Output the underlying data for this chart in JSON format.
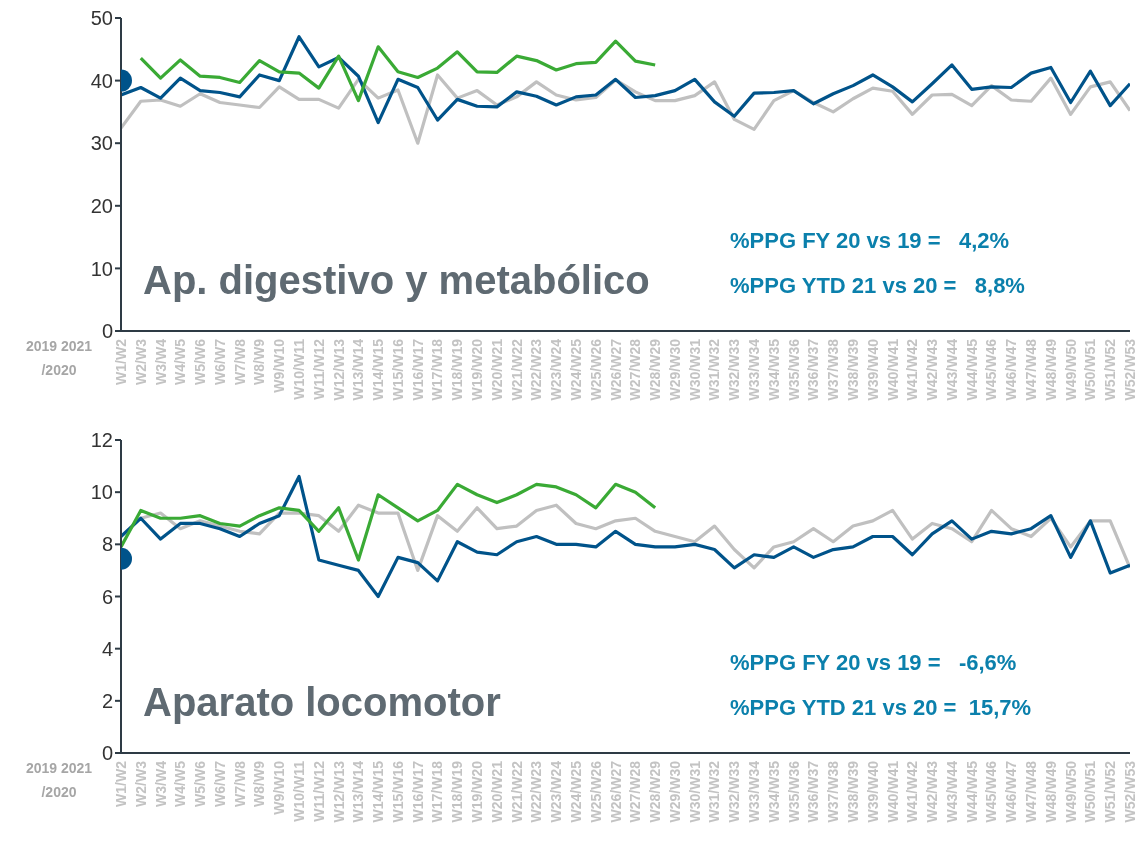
{
  "chart_data": [
    {
      "type": "line",
      "title": "Ap. digestivo y metabólico",
      "categories": [
        "W1/W2",
        "W2/W3",
        "W3/W4",
        "W4/W5",
        "W5/W6",
        "W6/W7",
        "W7/W8",
        "W8/W9",
        "W9/W10",
        "W10/W11",
        "W11/W12",
        "W12/W13",
        "W13/W14",
        "W14/W15",
        "W15/W16",
        "W16/W17",
        "W17/W18",
        "W18/W19",
        "W19/W20",
        "W20/W21",
        "W21/W22",
        "W22/W23",
        "W23/W24",
        "W24/W25",
        "W25/W26",
        "W26/W27",
        "W27/W28",
        "W28/W29",
        "W29/W30",
        "W30/W31",
        "W31/W32",
        "W32/W33",
        "W33/W34",
        "W34/W35",
        "W35/W36",
        "W36/W37",
        "W37/W38",
        "W38/W39",
        "W39/W40",
        "W40/W41",
        "W41/W42",
        "W42/W43",
        "W43/W44",
        "W44/W45",
        "W45/W46",
        "W46/W47",
        "W47/W48",
        "W48/W49",
        "W49/W50",
        "W50/W51",
        "W51/W52",
        "W52/W53"
      ],
      "series": [
        {
          "color": "#c0c0c0",
          "values": [
            32.4,
            36.7,
            36.9,
            35.9,
            37.9,
            36.5,
            36.1,
            35.7,
            39.0,
            37.0,
            37.0,
            35.6,
            40.2,
            37.2,
            38.5,
            30.0,
            40.9,
            37.2,
            38.4,
            36.1,
            37.4,
            39.8,
            37.7,
            36.9,
            37.3,
            40.1,
            38.2,
            36.8,
            36.8,
            37.6,
            39.8,
            33.8,
            32.2,
            36.8,
            38.4,
            36.5,
            35.0,
            37.1,
            38.8,
            38.3,
            34.6,
            37.7,
            37.8,
            36.0,
            39.2,
            36.9,
            36.7,
            40.4,
            34.6,
            39.0,
            39.8,
            35.2
          ]
        },
        {
          "color": "#00538a",
          "values": [
            37.7,
            38.9,
            37.2,
            40.4,
            38.4,
            38.1,
            37.4,
            40.9,
            40.0,
            47.0,
            42.2,
            43.7,
            40.7,
            33.3,
            40.2,
            38.9,
            33.7,
            37.0,
            35.9,
            35.8,
            38.2,
            37.5,
            36.1,
            37.4,
            37.7,
            40.2,
            37.3,
            37.6,
            38.4,
            40.2,
            36.6,
            34.3,
            38.0,
            38.1,
            38.4,
            36.3,
            37.9,
            39.2,
            40.9,
            39.0,
            36.6,
            39.5,
            42.5,
            38.6,
            39.0,
            38.9,
            41.2,
            42.1,
            36.5,
            41.5,
            36.0,
            39.5
          ]
        },
        {
          "color": "#3aaa35",
          "values": [
            null,
            43.6,
            40.4,
            43.3,
            40.7,
            40.5,
            39.7,
            43.2,
            41.4,
            41.2,
            38.8,
            43.9,
            36.8,
            45.4,
            41.4,
            40.5,
            42.0,
            44.6,
            41.4,
            41.3,
            43.9,
            43.2,
            41.7,
            42.7,
            42.9,
            46.3,
            43.1,
            42.5,
            null,
            null,
            null,
            null,
            null,
            null,
            null,
            null,
            null,
            null,
            null,
            null,
            null,
            null,
            null,
            null,
            null,
            null,
            null,
            null,
            null,
            null,
            null,
            null
          ]
        },
        {
          "type": "scatter",
          "color": "#00538a",
          "marker": "circle",
          "x": [
            "W1/W2"
          ],
          "values": [
            40
          ]
        }
      ],
      "ylim": [
        0,
        50
      ],
      "yticks": [
        0,
        10,
        20,
        30,
        40,
        50
      ],
      "grid": false,
      "marker": "none",
      "line_style": "solid",
      "annotations": [
        "%PPG FY 20 vs 19 =   4,2%",
        "%PPG YTD 21 vs 20 =   8,8%",
        "2019 2021",
        "/2020"
      ]
    },
    {
      "type": "line",
      "title": "Aparato locomotor",
      "categories": [
        "W1/W2",
        "W2/W3",
        "W3/W4",
        "W4/W5",
        "W5/W6",
        "W6/W7",
        "W7/W8",
        "W8/W9",
        "W9/W10",
        "W10/W11",
        "W11/W12",
        "W12/W13",
        "W13/W14",
        "W14/W15",
        "W15/W16",
        "W16/W17",
        "W17/W18",
        "W18/W19",
        "W19/W20",
        "W20/W21",
        "W21/W22",
        "W22/W23",
        "W23/W24",
        "W24/W25",
        "W25/W26",
        "W26/W27",
        "W27/W28",
        "W28/W29",
        "W29/W30",
        "W30/W31",
        "W31/W32",
        "W32/W33",
        "W33/W34",
        "W34/W35",
        "W35/W36",
        "W36/W37",
        "W37/W38",
        "W38/W39",
        "W39/W40",
        "W40/W41",
        "W41/W42",
        "W42/W43",
        "W43/W44",
        "W44/W45",
        "W45/W46",
        "W46/W47",
        "W47/W48",
        "W48/W49",
        "W49/W50",
        "W50/W51",
        "W51/W52",
        "W52/W53"
      ],
      "series": [
        {
          "color": "#c0c0c0",
          "values": [
            null,
            9.0,
            9.2,
            8.6,
            8.9,
            8.7,
            8.5,
            8.4,
            9.2,
            9.2,
            9.1,
            8.5,
            9.5,
            9.2,
            9.2,
            7.0,
            9.1,
            8.5,
            9.4,
            8.6,
            8.7,
            9.3,
            9.5,
            8.8,
            8.6,
            8.9,
            9.0,
            8.5,
            8.3,
            8.1,
            8.7,
            7.8,
            7.1,
            7.9,
            8.1,
            8.6,
            8.1,
            8.7,
            8.9,
            9.3,
            8.2,
            8.8,
            8.6,
            8.1,
            9.3,
            8.6,
            8.3,
            9.0,
            7.9,
            8.9,
            8.9,
            7.1
          ]
        },
        {
          "color": "#00538a",
          "values": [
            8.3,
            9.0,
            8.2,
            8.8,
            8.8,
            8.6,
            8.3,
            8.8,
            9.1,
            10.6,
            7.4,
            7.2,
            7.0,
            6.0,
            7.5,
            7.3,
            6.6,
            8.1,
            7.7,
            7.6,
            8.1,
            8.3,
            8.0,
            8.0,
            7.9,
            8.5,
            8.0,
            7.9,
            7.9,
            8.0,
            7.8,
            7.1,
            7.6,
            7.5,
            7.9,
            7.5,
            7.8,
            7.9,
            8.3,
            8.3,
            7.6,
            8.4,
            8.9,
            8.2,
            8.5,
            8.4,
            8.6,
            9.1,
            7.5,
            8.9,
            6.9,
            7.2
          ]
        },
        {
          "color": "#3aaa35",
          "values": [
            7.9,
            9.3,
            9.0,
            9.0,
            9.1,
            8.8,
            8.7,
            9.1,
            9.4,
            9.3,
            8.5,
            9.4,
            7.4,
            9.9,
            9.4,
            8.9,
            9.3,
            10.3,
            9.9,
            9.6,
            9.9,
            10.3,
            10.2,
            9.9,
            9.4,
            10.3,
            10.0,
            9.4,
            null,
            null,
            null,
            null,
            null,
            null,
            null,
            null,
            null,
            null,
            null,
            null,
            null,
            null,
            null,
            null,
            null,
            null,
            null,
            null,
            null,
            null,
            null,
            null
          ]
        },
        {
          "type": "scatter",
          "color": "#00538a",
          "marker": "circle",
          "x": [
            "W1/W2"
          ],
          "values": [
            7.45
          ]
        }
      ],
      "ylim": [
        0,
        12
      ],
      "yticks": [
        0,
        2,
        4,
        6,
        8,
        10,
        12
      ],
      "grid": false,
      "marker": "none",
      "line_style": "solid",
      "annotations": [
        "%PPG FY 20 vs 19 =   -6,6%",
        "%PPG YTD 21 vs 20 =  15,7%",
        "2019 2021",
        "/2020"
      ]
    }
  ]
}
